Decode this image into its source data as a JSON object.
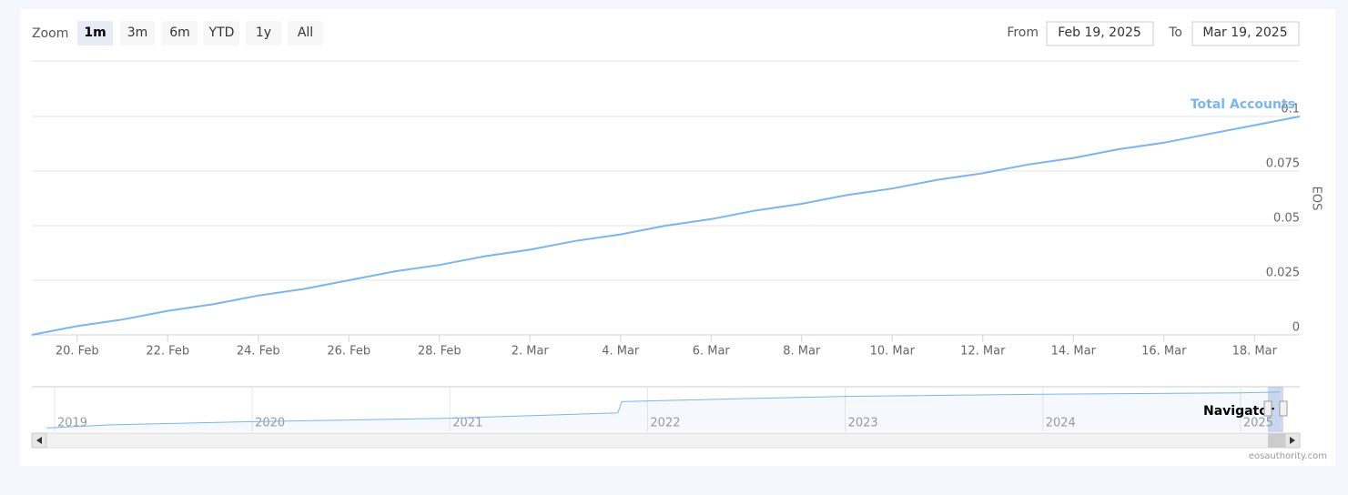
{
  "range_selector": {
    "label": "Zoom",
    "buttons": [
      "1m",
      "3m",
      "6m",
      "YTD",
      "1y",
      "All"
    ],
    "selected": 0
  },
  "date_range": {
    "from_label": "From",
    "from": "Feb 19, 2025",
    "to_label": "To",
    "to": "Mar 19, 2025"
  },
  "chart_data": {
    "type": "line",
    "x": [
      "2025-02-19",
      "2025-02-20",
      "2025-02-21",
      "2025-02-22",
      "2025-02-23",
      "2025-02-24",
      "2025-02-25",
      "2025-02-26",
      "2025-02-27",
      "2025-02-28",
      "2025-03-01",
      "2025-03-02",
      "2025-03-03",
      "2025-03-04",
      "2025-03-05",
      "2025-03-06",
      "2025-03-07",
      "2025-03-08",
      "2025-03-09",
      "2025-03-10",
      "2025-03-11",
      "2025-03-12",
      "2025-03-13",
      "2025-03-14",
      "2025-03-15",
      "2025-03-16",
      "2025-03-17",
      "2025-03-18",
      "2025-03-19"
    ],
    "series": [
      {
        "name": "Total Accounts",
        "color": "#7cb5ec",
        "values": [
          0,
          0.004,
          0.007,
          0.011,
          0.014,
          0.018,
          0.021,
          0.025,
          0.029,
          0.032,
          0.036,
          0.039,
          0.043,
          0.046,
          0.05,
          0.053,
          0.057,
          0.06,
          0.064,
          0.067,
          0.071,
          0.074,
          0.078,
          0.081,
          0.085,
          0.088,
          0.092,
          0.096,
          0.1
        ]
      }
    ],
    "xlim": [
      "2025-02-19",
      "2025-03-19"
    ],
    "xticks": [
      {
        "value": "2025-02-20",
        "label": "20. Feb"
      },
      {
        "value": "2025-02-22",
        "label": "22. Feb"
      },
      {
        "value": "2025-02-24",
        "label": "24. Feb"
      },
      {
        "value": "2025-02-26",
        "label": "26. Feb"
      },
      {
        "value": "2025-02-28",
        "label": "28. Feb"
      },
      {
        "value": "2025-03-02",
        "label": "2. Mar"
      },
      {
        "value": "2025-03-04",
        "label": "4. Mar"
      },
      {
        "value": "2025-03-06",
        "label": "6. Mar"
      },
      {
        "value": "2025-03-08",
        "label": "8. Mar"
      },
      {
        "value": "2025-03-10",
        "label": "10. Mar"
      },
      {
        "value": "2025-03-12",
        "label": "12. Mar"
      },
      {
        "value": "2025-03-14",
        "label": "14. Mar"
      },
      {
        "value": "2025-03-16",
        "label": "16. Mar"
      },
      {
        "value": "2025-03-18",
        "label": "18. Mar"
      }
    ],
    "ylim": [
      0,
      0.125
    ],
    "yticks": [
      0,
      0.025,
      0.05,
      0.075,
      0.1
    ],
    "y_axis_label": "EOS",
    "grid": true
  },
  "navigator": {
    "label": "Navigator",
    "color": "#7cb5ec",
    "x": [
      2018.96,
      2019.3,
      2020,
      2021,
      2021.85,
      2021.87,
      2022.5,
      2023,
      2024,
      2025,
      2025.2
    ],
    "values": [
      0.08,
      0.15,
      0.22,
      0.3,
      0.42,
      0.68,
      0.75,
      0.8,
      0.85,
      0.88,
      0.9
    ],
    "xlim": [
      2018.885,
      2025.3
    ],
    "ylim": [
      0,
      1
    ],
    "xticks": [
      2019,
      2020,
      2021,
      2022,
      2023,
      2024,
      2025
    ]
  },
  "credits": "eosauthority.com"
}
